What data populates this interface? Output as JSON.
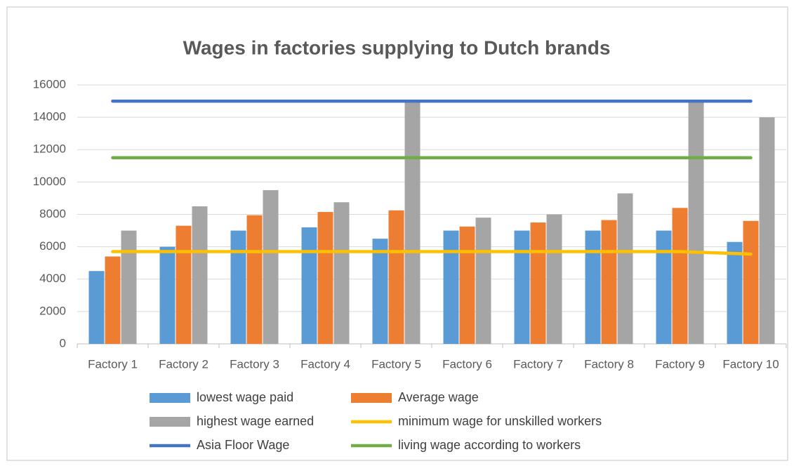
{
  "chart_data": {
    "type": "bar",
    "title": "Wages in factories supplying to Dutch brands",
    "categories": [
      "Factory 1",
      "Factory 2",
      "Factory 3",
      "Factory 4",
      "Factory 5",
      "Factory 6",
      "Factory 7",
      "Factory 8",
      "Factory 9",
      "Factory 10"
    ],
    "series": [
      {
        "name": "lowest wage paid",
        "type": "bar",
        "color": "#5b9bd5",
        "values": [
          4500,
          6000,
          7000,
          7200,
          6500,
          7000,
          7000,
          7000,
          7000,
          6300
        ]
      },
      {
        "name": "Average wage",
        "type": "bar",
        "color": "#ed7d31",
        "values": [
          5400,
          7300,
          7950,
          8150,
          8250,
          7250,
          7500,
          7650,
          8400,
          7600
        ]
      },
      {
        "name": "highest wage earned",
        "type": "bar",
        "color": "#a5a5a5",
        "values": [
          7000,
          8500,
          9500,
          8750,
          15000,
          7800,
          8000,
          9300,
          15000,
          14000
        ]
      },
      {
        "name": "minimum wage for unskilled workers",
        "type": "line",
        "color": "#ffc000",
        "values": [
          5700,
          5700,
          5700,
          5700,
          5700,
          5700,
          5700,
          5700,
          5700,
          5550
        ]
      },
      {
        "name": "Asia Floor Wage",
        "type": "line",
        "color": "#4472c4",
        "values": [
          15000,
          15000,
          15000,
          15000,
          15000,
          15000,
          15000,
          15000,
          15000,
          15000
        ]
      },
      {
        "name": "living wage according to workers",
        "type": "line",
        "color": "#70ad47",
        "values": [
          11500,
          11500,
          11500,
          11500,
          11500,
          11500,
          11500,
          11500,
          11500,
          11500
        ]
      }
    ],
    "ylim": [
      0,
      16000
    ],
    "yticks": [
      0,
      2000,
      4000,
      6000,
      8000,
      10000,
      12000,
      14000,
      16000
    ],
    "grid": true,
    "legend": "bottom"
  }
}
